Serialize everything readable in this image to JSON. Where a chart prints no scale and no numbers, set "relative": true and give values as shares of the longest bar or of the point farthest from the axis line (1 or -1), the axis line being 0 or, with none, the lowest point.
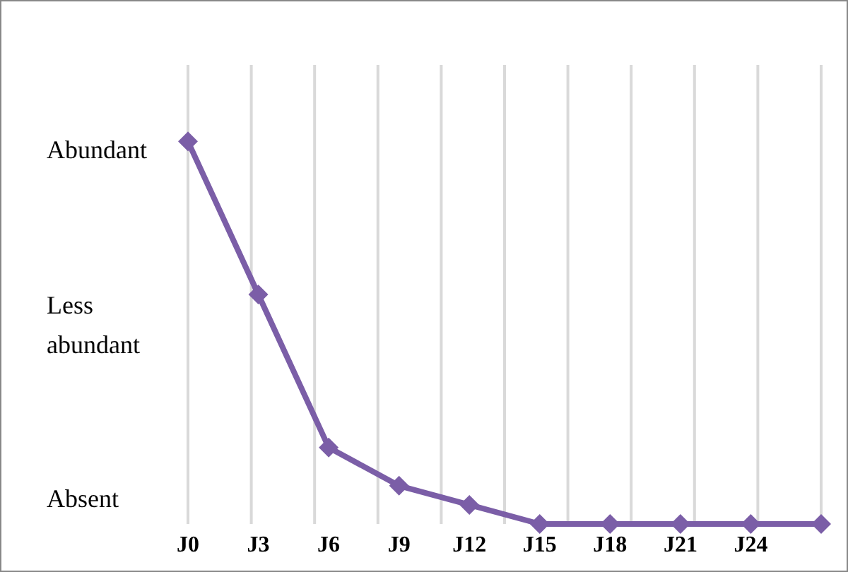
{
  "chart_data": {
    "type": "line",
    "relative": true,
    "categories": [
      "J0",
      "J3",
      "J6",
      "J9",
      "J12",
      "J15",
      "J18",
      "J21",
      "J24",
      null
    ],
    "series": [
      {
        "color": "#7b5ea7",
        "values": [
          1,
          0.6,
          0.2,
          0.1,
          0.05,
          0,
          0,
          0,
          0,
          0
        ]
      }
    ],
    "annotations": [
      "Abundant",
      "Less abundant",
      "Absent"
    ],
    "grid": "x",
    "marker": "diamond",
    "line_style": "solid"
  }
}
